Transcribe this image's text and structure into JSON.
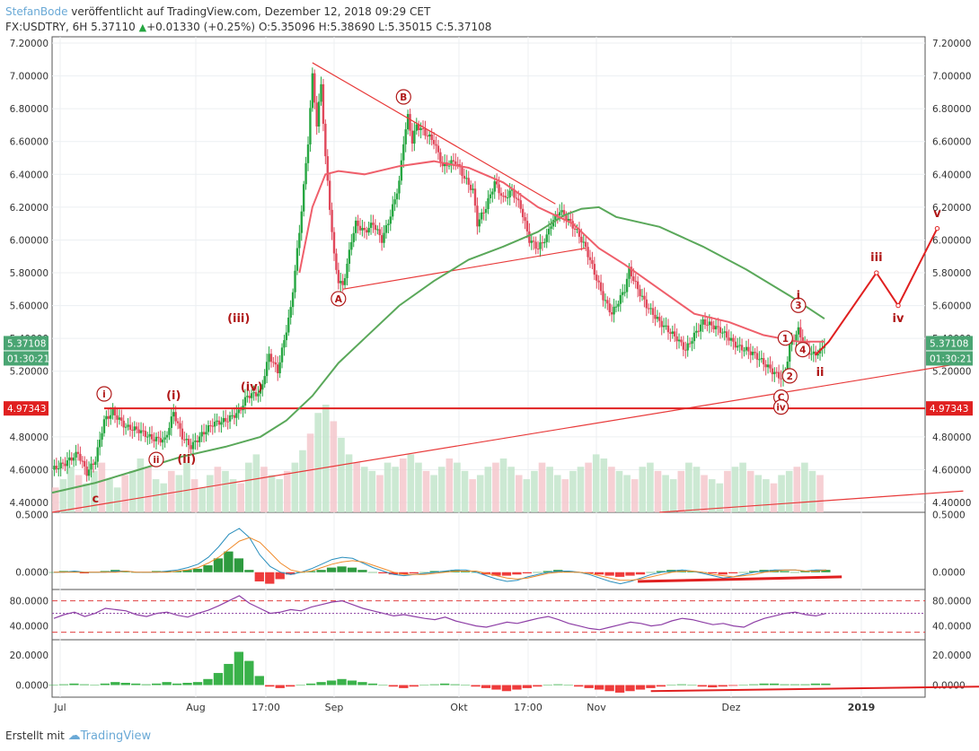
{
  "header": {
    "author": "StefanBode",
    "published": "veröffentlicht auf TradingView.com, Dezember 12, 2018 09:29 CET",
    "symbol": "FX:USDTRY, 6H",
    "last": "5.37110",
    "change": "+0.01330 (+0.25%)",
    "ohlc": "O:5.35096 H:5.38690 L:5.35015 C:5.37108"
  },
  "footer": {
    "created": "Erstellt mit",
    "brand": "TradingView"
  },
  "colors": {
    "up": "#26a641",
    "down": "#e0485b",
    "ma_red": "#ef5f6b",
    "ma_green": "#5aa85a",
    "trend": "#e83a3a",
    "wave": "#b01818",
    "projection": "#e02020",
    "price_label": "#4aa573"
  },
  "chart_data": [
    {
      "type": "line",
      "panel": "price",
      "x_axis": {
        "ticks": [
          "Jul",
          "Aug",
          "17:00",
          "Sep",
          "Okt",
          "17:00",
          "Nov",
          "Dez",
          "2019"
        ]
      },
      "y_axis": {
        "ylim": [
          4.34,
          7.2
        ],
        "ticks": [
          "7.20000",
          "7.00000",
          "6.80000",
          "6.60000",
          "6.40000",
          "6.20000",
          "6.00000",
          "5.80000",
          "5.60000",
          "5.40000",
          "5.20000",
          "4.80000",
          "4.60000",
          "4.40000"
        ]
      },
      "x_range_days": [
        0,
        195
      ],
      "price_path": [
        [
          0,
          4.6
        ],
        [
          3,
          4.64
        ],
        [
          6,
          4.7
        ],
        [
          8,
          4.58
        ],
        [
          10,
          4.66
        ],
        [
          12,
          4.9
        ],
        [
          14,
          4.95
        ],
        [
          17,
          4.86
        ],
        [
          20,
          4.84
        ],
        [
          23,
          4.79
        ],
        [
          26,
          4.78
        ],
        [
          28,
          4.95
        ],
        [
          30,
          4.8
        ],
        [
          32,
          4.74
        ],
        [
          34,
          4.8
        ],
        [
          37,
          4.88
        ],
        [
          40,
          4.9
        ],
        [
          43,
          4.95
        ],
        [
          45,
          5.05
        ],
        [
          48,
          5.07
        ],
        [
          50,
          5.3
        ],
        [
          52,
          5.2
        ],
        [
          55,
          5.58
        ],
        [
          57,
          6.05
        ],
        [
          59,
          6.6
        ],
        [
          60,
          7.0
        ],
        [
          61,
          6.7
        ],
        [
          62,
          6.95
        ],
        [
          63,
          6.5
        ],
        [
          64,
          6.2
        ],
        [
          65,
          5.9
        ],
        [
          66,
          5.75
        ],
        [
          67,
          5.72
        ],
        [
          68,
          5.85
        ],
        [
          69,
          6.0
        ],
        [
          70,
          6.1
        ],
        [
          72,
          6.05
        ],
        [
          74,
          6.1
        ],
        [
          76,
          6.0
        ],
        [
          78,
          6.15
        ],
        [
          80,
          6.35
        ],
        [
          81,
          6.6
        ],
        [
          82,
          6.75
        ],
        [
          83,
          6.6
        ],
        [
          84,
          6.7
        ],
        [
          86,
          6.65
        ],
        [
          88,
          6.6
        ],
        [
          90,
          6.45
        ],
        [
          93,
          6.48
        ],
        [
          95,
          6.38
        ],
        [
          97,
          6.3
        ],
        [
          98,
          6.1
        ],
        [
          100,
          6.2
        ],
        [
          102,
          6.35
        ],
        [
          104,
          6.25
        ],
        [
          106,
          6.3
        ],
        [
          108,
          6.2
        ],
        [
          110,
          6.0
        ],
        [
          112,
          5.95
        ],
        [
          114,
          6.02
        ],
        [
          115,
          6.1
        ],
        [
          117,
          6.18
        ],
        [
          119,
          6.12
        ],
        [
          121,
          6.05
        ],
        [
          123,
          5.95
        ],
        [
          125,
          5.8
        ],
        [
          127,
          5.65
        ],
        [
          129,
          5.55
        ],
        [
          130,
          5.6
        ],
        [
          132,
          5.7
        ],
        [
          133,
          5.82
        ],
        [
          135,
          5.7
        ],
        [
          137,
          5.6
        ],
        [
          140,
          5.5
        ],
        [
          142,
          5.45
        ],
        [
          144,
          5.4
        ],
        [
          146,
          5.33
        ],
        [
          148,
          5.42
        ],
        [
          150,
          5.5
        ],
        [
          152,
          5.48
        ],
        [
          154,
          5.45
        ],
        [
          156,
          5.4
        ],
        [
          158,
          5.35
        ],
        [
          160,
          5.33
        ],
        [
          162,
          5.3
        ],
        [
          164,
          5.25
        ],
        [
          166,
          5.2
        ],
        [
          168,
          5.16
        ],
        [
          169,
          5.2
        ],
        [
          170,
          5.35
        ],
        [
          172,
          5.45
        ],
        [
          173,
          5.38
        ],
        [
          175,
          5.3
        ],
        [
          177,
          5.32
        ],
        [
          178,
          5.37
        ]
      ],
      "ma_red_path": [
        [
          57,
          5.8
        ],
        [
          60,
          6.2
        ],
        [
          63,
          6.4
        ],
        [
          66,
          6.42
        ],
        [
          72,
          6.4
        ],
        [
          80,
          6.45
        ],
        [
          88,
          6.48
        ],
        [
          96,
          6.44
        ],
        [
          104,
          6.35
        ],
        [
          112,
          6.2
        ],
        [
          120,
          6.1
        ],
        [
          126,
          5.95
        ],
        [
          132,
          5.85
        ],
        [
          140,
          5.7
        ],
        [
          148,
          5.55
        ],
        [
          156,
          5.5
        ],
        [
          164,
          5.42
        ],
        [
          172,
          5.38
        ],
        [
          178,
          5.38
        ]
      ],
      "ma_green_path": [
        [
          0,
          4.46
        ],
        [
          10,
          4.52
        ],
        [
          20,
          4.6
        ],
        [
          30,
          4.68
        ],
        [
          40,
          4.74
        ],
        [
          48,
          4.8
        ],
        [
          54,
          4.9
        ],
        [
          60,
          5.05
        ],
        [
          66,
          5.25
        ],
        [
          72,
          5.4
        ],
        [
          80,
          5.6
        ],
        [
          88,
          5.75
        ],
        [
          96,
          5.88
        ],
        [
          104,
          5.96
        ],
        [
          112,
          6.05
        ],
        [
          118,
          6.15
        ],
        [
          122,
          6.19
        ],
        [
          126,
          6.2
        ],
        [
          130,
          6.14
        ],
        [
          140,
          6.08
        ],
        [
          150,
          5.96
        ],
        [
          160,
          5.82
        ],
        [
          170,
          5.66
        ],
        [
          178,
          5.52
        ]
      ],
      "projection_path": [
        [
          176,
          5.3
        ],
        [
          179,
          5.38
        ],
        [
          190,
          5.8
        ],
        [
          195,
          5.6
        ],
        [
          204,
          6.07
        ]
      ],
      "horizontal_levels": [
        4.97343
      ],
      "trendlines": [
        [
          [
            60,
            7.08
          ],
          [
            116,
            6.22
          ]
        ],
        [
          [
            67,
            5.7
          ],
          [
            123,
            5.95
          ]
        ],
        [
          [
            0,
            4.34
          ],
          [
            210,
            5.25
          ]
        ],
        [
          [
            140,
            4.34
          ],
          [
            210,
            4.47
          ]
        ]
      ],
      "volume": [
        30,
        40,
        55,
        45,
        35,
        50,
        60,
        40,
        30,
        45,
        50,
        65,
        55,
        40,
        35,
        50,
        45,
        60,
        40,
        30,
        45,
        55,
        50,
        40,
        35,
        60,
        70,
        55,
        45,
        40,
        50,
        60,
        75,
        95,
        120,
        130,
        110,
        90,
        70,
        60,
        55,
        50,
        45,
        60,
        55,
        65,
        70,
        60,
        50,
        45,
        55,
        65,
        60,
        50,
        40,
        45,
        55,
        60,
        65,
        55,
        45,
        40,
        50,
        60,
        55,
        45,
        40,
        50,
        55,
        60,
        70,
        65,
        55,
        50,
        45,
        40,
        55,
        60,
        50,
        45,
        40,
        50,
        60,
        55,
        45,
        40,
        35,
        50,
        55,
        60,
        50,
        45,
        40,
        35,
        45,
        50,
        55,
        60,
        50,
        45
      ],
      "price_labels": {
        "current": "5.37108",
        "countdown": "01:30:21",
        "level": "4.97343"
      },
      "wave_labels": [
        {
          "text": "i",
          "x": 12,
          "y": 5.04,
          "circled": true
        },
        {
          "text": "(i)",
          "x": 28,
          "y": 5.03,
          "circled": false
        },
        {
          "text": "(ii)",
          "x": 31,
          "y": 4.64,
          "circled": false
        },
        {
          "text": "ii",
          "x": 24,
          "y": 4.64,
          "circled": true
        },
        {
          "text": "c",
          "x": 10,
          "y": 4.4,
          "circled": false
        },
        {
          "text": "(iii)",
          "x": 43,
          "y": 5.5,
          "circled": false
        },
        {
          "text": "(iv)",
          "x": 46,
          "y": 5.08,
          "circled": false
        },
        {
          "text": "A",
          "x": 66,
          "y": 5.62,
          "circled": true
        },
        {
          "text": "B",
          "x": 81,
          "y": 6.85,
          "circled": true
        },
        {
          "text": "C",
          "x": 168,
          "y": 5.02,
          "circled": true
        },
        {
          "text": "iv",
          "x": 168,
          "y": 4.96,
          "circled": true
        },
        {
          "text": "1",
          "x": 169,
          "y": 5.38,
          "circled": true
        },
        {
          "text": "2",
          "x": 170,
          "y": 5.15,
          "circled": true
        },
        {
          "text": "3",
          "x": 172,
          "y": 5.58,
          "circled": true
        },
        {
          "text": "4",
          "x": 173,
          "y": 5.31,
          "circled": true
        },
        {
          "text": "i",
          "x": 172,
          "y": 5.64,
          "circled": false
        },
        {
          "text": "ii",
          "x": 177,
          "y": 5.17,
          "circled": false
        },
        {
          "text": "iii",
          "x": 190,
          "y": 5.87,
          "circled": false
        },
        {
          "text": "iv",
          "x": 195,
          "y": 5.5,
          "circled": false
        },
        {
          "text": "v",
          "x": 204,
          "y": 6.14,
          "circled": false
        }
      ]
    },
    {
      "type": "line",
      "panel": "macd",
      "y_axis": {
        "ylim": [
          -0.15,
          0.52
        ],
        "ticks": [
          "0.5000",
          "0.0000"
        ]
      },
      "hist": [
        0,
        0.01,
        0.01,
        -0.01,
        0,
        0.01,
        0.02,
        0.01,
        0,
        0,
        0.01,
        0.01,
        0.01,
        0.02,
        0.03,
        0.06,
        0.12,
        0.18,
        0.12,
        0.02,
        -0.08,
        -0.1,
        -0.06,
        -0.02,
        0,
        0.01,
        0.02,
        0.04,
        0.05,
        0.04,
        0.02,
        0,
        -0.01,
        -0.02,
        -0.02,
        -0.01,
        0,
        0.01,
        0.01,
        0.02,
        0.01,
        0,
        -0.02,
        -0.03,
        -0.03,
        -0.02,
        -0.01,
        0,
        0.01,
        0.02,
        0.01,
        0,
        -0.01,
        -0.02,
        -0.03,
        -0.04,
        -0.03,
        -0.02,
        0,
        0.01,
        0.02,
        0.02,
        0.01,
        0,
        -0.01,
        -0.02,
        -0.01,
        0,
        0.01,
        0.02,
        0.02,
        0.01,
        0,
        0.01,
        0.02,
        0.02
      ],
      "line": [
        0,
        0,
        0.01,
        0,
        0,
        0,
        0.01,
        0.01,
        0,
        0,
        0,
        0.01,
        0.02,
        0.04,
        0.07,
        0.13,
        0.22,
        0.33,
        0.38,
        0.3,
        0.15,
        0.05,
        0,
        -0.02,
        0,
        0.03,
        0.07,
        0.11,
        0.13,
        0.12,
        0.08,
        0.04,
        0.01,
        -0.02,
        -0.03,
        -0.02,
        -0.01,
        0,
        0.01,
        0.02,
        0.02,
        0,
        -0.03,
        -0.06,
        -0.08,
        -0.07,
        -0.04,
        -0.02,
        0,
        0.01,
        0.01,
        0,
        -0.02,
        -0.05,
        -0.08,
        -0.1,
        -0.08,
        -0.05,
        -0.02,
        0,
        0.01,
        0.02,
        0.01,
        -0.01,
        -0.03,
        -0.05,
        -0.04,
        -0.02,
        0,
        0.01,
        0.02,
        0.02,
        0.02,
        0.01,
        0.02,
        0.02
      ],
      "signal": [
        0,
        0,
        0,
        0,
        0,
        0,
        0,
        0.01,
        0,
        0,
        0,
        0,
        0.01,
        0.02,
        0.04,
        0.08,
        0.13,
        0.2,
        0.27,
        0.3,
        0.26,
        0.17,
        0.08,
        0.02,
        0,
        0.01,
        0.04,
        0.07,
        0.09,
        0.1,
        0.09,
        0.06,
        0.03,
        0,
        -0.02,
        -0.02,
        -0.02,
        -0.01,
        0,
        0.01,
        0.01,
        0.01,
        -0.01,
        -0.03,
        -0.05,
        -0.06,
        -0.05,
        -0.03,
        -0.01,
        0,
        0,
        0,
        -0.01,
        -0.03,
        -0.05,
        -0.07,
        -0.07,
        -0.06,
        -0.04,
        -0.02,
        0,
        0.01,
        0.01,
        0,
        -0.02,
        -0.03,
        -0.04,
        -0.03,
        -0.02,
        0,
        0.01,
        0.02,
        0.02,
        0.01,
        0.01,
        0.02
      ],
      "divergence": [
        [
          135,
          -0.08
        ],
        [
          182,
          -0.04
        ]
      ]
    },
    {
      "type": "line",
      "panel": "rsi",
      "y_axis": {
        "ylim": [
          18,
          98
        ],
        "ticks": [
          "80.0000",
          "40.0000"
        ]
      },
      "bands": [
        80,
        60,
        30
      ],
      "values": [
        52,
        58,
        62,
        55,
        60,
        68,
        66,
        64,
        58,
        55,
        60,
        62,
        57,
        54,
        60,
        65,
        72,
        80,
        88,
        76,
        68,
        60,
        62,
        66,
        64,
        70,
        74,
        78,
        80,
        74,
        68,
        64,
        60,
        56,
        58,
        55,
        52,
        50,
        54,
        48,
        44,
        40,
        38,
        42,
        46,
        44,
        48,
        52,
        55,
        50,
        44,
        40,
        36,
        34,
        38,
        42,
        46,
        44,
        40,
        42,
        48,
        52,
        50,
        46,
        42,
        44,
        40,
        38,
        46,
        52,
        56,
        60,
        62,
        58,
        56,
        60
      ]
    },
    {
      "type": "bar",
      "panel": "momentum",
      "y_axis": {
        "ylim": [
          -8,
          30
        ],
        "ticks": [
          "20.0000",
          "0.0000"
        ]
      },
      "values": [
        0,
        0.5,
        1,
        0.5,
        0,
        1,
        2,
        1.5,
        1,
        0.5,
        1,
        2,
        1,
        1.5,
        2,
        4,
        8,
        14,
        22,
        16,
        6,
        -1,
        -2,
        -1,
        0,
        1,
        2,
        3,
        4,
        3,
        2,
        1,
        0,
        -1,
        -2,
        -1,
        0,
        0.5,
        1,
        0.5,
        0,
        -1,
        -2,
        -3,
        -4,
        -3,
        -2,
        -1,
        0,
        0.5,
        0,
        -1,
        -2,
        -3,
        -4,
        -5,
        -4,
        -3,
        -2,
        -1,
        0,
        0.5,
        0,
        -1,
        -1.5,
        -1,
        -0.5,
        0,
        0.5,
        1,
        1,
        0.5,
        0.5,
        0.5,
        1,
        1
      ],
      "divergence": [
        [
          138,
          -4
        ],
        [
          214,
          -1
        ]
      ]
    }
  ]
}
